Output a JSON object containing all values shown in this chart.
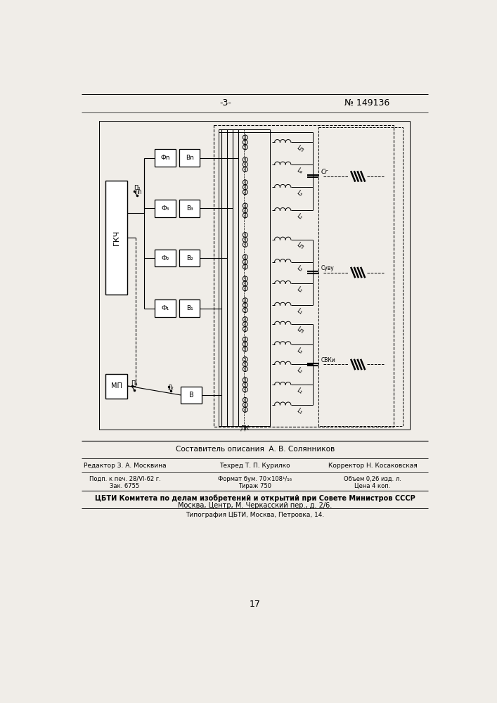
{
  "page_number": "-3-",
  "patent_number": "№ 149136",
  "composer": "Составитель описания  А. В. Солянников",
  "editor": "Редактор З. А. Москвина",
  "tekhred": "Техред Т. П. Курилко",
  "korrektor": "Корректор Н. Косаковская",
  "podp": "Подп. к печ. 28/VI-62 г.",
  "format": "Формат бум. 70×108¹/₁₆",
  "obem": "Объем 0,26 изд. л.",
  "zak": "Зак. 6755",
  "tirazh": "Тираж 750",
  "tsena": "Цена 4 коп.",
  "tsbti_line1": "ЦБТИ Комитета по делам изобретений и открытий при Совете Министров СССР",
  "tsbti_line2": "Москва, Центр, М. Черкасский пер., д. 2/6.",
  "tipogr": "Типография ЦБТИ, Москва, Петровка, 14.",
  "page_num_bottom": "17",
  "bg_color": "#f0ede8"
}
